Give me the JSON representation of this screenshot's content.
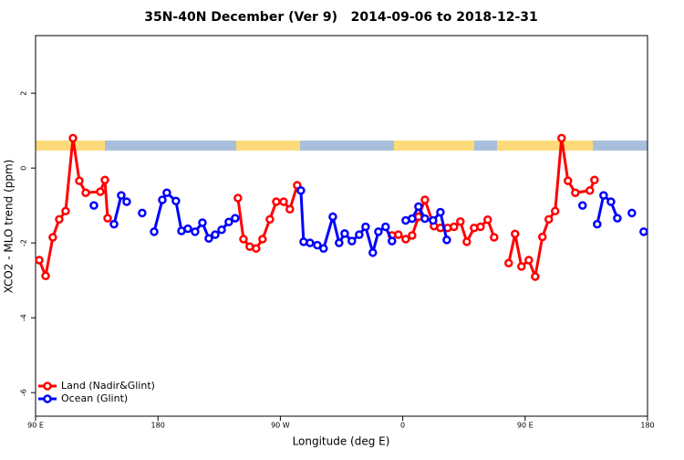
{
  "chart_data": {
    "type": "line",
    "title": "35N-40N December (Ver 9)   2014-09-06 to 2018-12-31",
    "xlabel": "Longitude (deg E)",
    "ylabel": "XCO2 - MLO trend (ppm)",
    "xlim": [
      90,
      540
    ],
    "ylim": [
      -6.63,
      3.54
    ],
    "xticks": [
      {
        "value": 90,
        "label": "90 E"
      },
      180,
      {
        "value": 270,
        "label": "90 W"
      },
      {
        "value": 360,
        "label": "0"
      },
      {
        "value": 450,
        "label": "90 E"
      },
      {
        "value": 540,
        "label": "180"
      }
    ],
    "yticks": [
      -6,
      -4,
      -2,
      0,
      2
    ],
    "legend": "bottom-left",
    "series": [
      {
        "name": "Land (Nadir&Glint)",
        "color": "#ff0000",
        "x": [
          92.7,
          97.4,
          102.7,
          107.4,
          112.1,
          117.5,
          122.2,
          126.9,
          137.6,
          141,
          143,
          null,
          238.8,
          242.9,
          247.5,
          252.2,
          256.9,
          262.3,
          267,
          272.4,
          277,
          282.4,
          null,
          352.1,
          356.8,
          362.2,
          366.9,
          371.6,
          376.3,
          383,
          387.7,
          393,
          397.7,
          402.4,
          407.1,
          412.5,
          417.2,
          422.5,
          427.2,
          null,
          437.9,
          442.6,
          447.3,
          452.7,
          457.4,
          462.7,
          467.4,
          472.1,
          476.8,
          481.5,
          486.9,
          497.6,
          501
        ],
        "values": [
          -2.46,
          -2.88,
          -1.85,
          -1.37,
          -1.15,
          0.8,
          -0.34,
          -0.66,
          -0.63,
          -0.32,
          -1.34,
          null,
          -0.8,
          -1.9,
          -2.1,
          -2.15,
          -1.9,
          -1.37,
          -0.9,
          -0.9,
          -1.1,
          -0.46,
          null,
          -1.8,
          -1.78,
          -1.9,
          -1.8,
          -1.3,
          -0.85,
          -1.55,
          -1.6,
          -1.6,
          -1.57,
          -1.43,
          -1.97,
          -1.6,
          -1.57,
          -1.38,
          -1.85,
          null,
          -2.54,
          -1.76,
          -2.63,
          -2.46,
          -2.9,
          -1.84,
          -1.37,
          -1.15,
          0.8,
          -0.34,
          -0.66,
          -0.6,
          -0.32
        ]
      },
      {
        "name": "Ocean (Glint)",
        "color": "#0000ff",
        "x": [
          132.9,
          null,
          147.7,
          153,
          157,
          null,
          168.4,
          null,
          177.2,
          183.2,
          186.5,
          193.2,
          197.3,
          202,
          207.3,
          212.7,
          217.4,
          222.1,
          226.8,
          232.1,
          236.8,
          null,
          285.1,
          287.1,
          291.8,
          297.2,
          301.8,
          308.6,
          313.2,
          317.3,
          322.6,
          328,
          332.7,
          338,
          342.1,
          347.4,
          352.1,
          null,
          362.2,
          366.9,
          371.6,
          376.3,
          382.3,
          387.7,
          392.4,
          null,
          492.2,
          null,
          503,
          507.7,
          513.1,
          517.8,
          null,
          528.5,
          null,
          537.2
        ],
        "values": [
          -1.0,
          null,
          -1.5,
          -0.73,
          -0.9,
          null,
          -1.2,
          null,
          -1.7,
          -0.85,
          -0.66,
          -0.88,
          -1.68,
          -1.62,
          -1.7,
          -1.46,
          -1.88,
          -1.78,
          -1.65,
          -1.44,
          -1.34,
          null,
          -0.6,
          -1.97,
          -2.0,
          -2.06,
          -2.15,
          -1.3,
          -2.0,
          -1.75,
          -1.95,
          -1.78,
          -1.57,
          -2.26,
          -1.7,
          -1.57,
          -1.95,
          null,
          -1.4,
          -1.35,
          -1.03,
          -1.35,
          -1.4,
          -1.18,
          -1.92,
          null,
          -1.0,
          null,
          -1.5,
          -0.73,
          -0.9,
          -1.34,
          null,
          -1.2,
          null,
          -1.7
        ]
      }
    ]
  }
}
